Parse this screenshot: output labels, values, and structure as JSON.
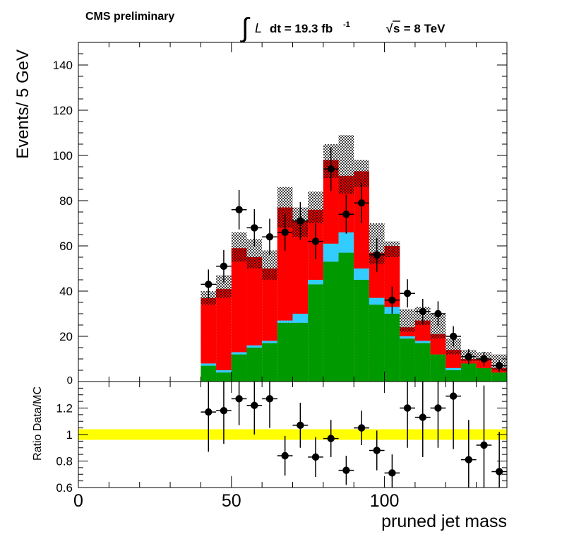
{
  "header": {
    "experiment": "CMS preliminary",
    "integral_symbol": "∫",
    "lumi_L": "L",
    "lumi_text": "dt = 19.3 fb",
    "lumi_exp": "-1",
    "sqrt_symbol": "√",
    "energy_s": "s",
    "energy_text": " = 8 TeV"
  },
  "colors": {
    "hatched_total": "#555555",
    "dark_red": "#8b0000",
    "red": "#ff0000",
    "cyan": "#33ccff",
    "green": "#009900",
    "band": "#ffff00",
    "data": "#000000"
  },
  "chart_data": [
    {
      "type": "bar",
      "stacked": true,
      "ylabel": "Events/ 5 GeV",
      "xlim": [
        0,
        140
      ],
      "ylim": [
        0,
        150
      ],
      "y_ticks": [
        20,
        40,
        60,
        80,
        100,
        120,
        140
      ],
      "y_tick_labels": [
        "20",
        "40",
        "60",
        "80",
        "100",
        "120",
        "140"
      ],
      "y_zero_label": "0",
      "bin_edges": [
        40,
        45,
        50,
        55,
        60,
        65,
        70,
        75,
        80,
        85,
        90,
        95,
        100,
        105,
        110,
        115,
        120,
        125,
        130,
        135,
        140
      ],
      "series": [
        {
          "key": "green",
          "values": [
            7,
            4,
            12,
            15,
            17,
            26,
            26,
            43,
            53,
            57,
            45,
            34,
            30,
            19,
            17,
            12,
            5,
            8,
            6,
            4
          ]
        },
        {
          "key": "cyan",
          "values": [
            1,
            1,
            1,
            1,
            1,
            1,
            4,
            2,
            8,
            9,
            5,
            3,
            3,
            1,
            1,
            0,
            1,
            0,
            0,
            0
          ]
        },
        {
          "key": "red",
          "values": [
            26,
            32,
            40,
            34,
            27,
            41,
            34,
            25,
            29,
            17,
            36,
            15,
            22,
            2,
            7,
            7,
            6,
            1,
            3,
            1
          ]
        },
        {
          "key": "dark_red",
          "values": [
            3,
            4,
            6,
            5,
            5,
            9,
            7,
            6,
            8,
            8,
            7,
            5,
            5,
            2,
            2,
            2,
            2,
            1,
            1,
            1
          ]
        }
      ],
      "total_hatched": [
        40,
        47,
        66,
        63,
        58,
        86,
        77,
        84,
        105,
        109,
        98,
        70,
        62,
        32,
        33,
        30,
        19,
        14,
        13,
        12
      ],
      "data_points": {
        "x": [
          42.5,
          47.5,
          52.5,
          57.5,
          62.5,
          67.5,
          72.5,
          77.5,
          82.5,
          87.5,
          92.5,
          97.5,
          102.5,
          107.5,
          112.5,
          117.5,
          122.5,
          127.5,
          132.5,
          137.5
        ],
        "y": [
          43,
          51,
          76,
          68,
          64,
          66,
          71,
          62,
          94,
          74,
          79,
          56,
          36,
          39,
          31,
          30,
          20,
          11,
          10,
          7
        ]
      }
    },
    {
      "type": "scatter",
      "ylabel": "Ratio Data/MC",
      "xlabel": "pruned jet mass",
      "xlim": [
        0,
        140
      ],
      "ylim": [
        0.6,
        1.4
      ],
      "x_ticks": [
        0,
        50,
        100
      ],
      "x_tick_labels": [
        "0",
        "50",
        "100"
      ],
      "y_ticks": [
        0.6,
        0.8,
        1,
        1.2
      ],
      "y_tick_labels": [
        "0.6",
        "0.8",
        "1",
        "1.2"
      ],
      "band": [
        0.96,
        1.04
      ],
      "reference": 1,
      "data_points": {
        "x": [
          42.5,
          47.5,
          52.5,
          57.5,
          62.5,
          67.5,
          72.5,
          77.5,
          82.5,
          87.5,
          92.5,
          97.5,
          102.5,
          107.5,
          112.5,
          117.5,
          122.5,
          127.5,
          132.5,
          137.5
        ],
        "y": [
          1.17,
          1.18,
          1.27,
          1.22,
          1.27,
          0.84,
          1.07,
          0.83,
          0.97,
          0.73,
          1.05,
          0.88,
          0.71,
          1.2,
          1.13,
          1.2,
          1.29,
          0.81,
          0.92,
          0.72
        ],
        "err": [
          0.3,
          0.25,
          0.2,
          0.22,
          0.22,
          0.15,
          0.17,
          0.15,
          0.14,
          0.11,
          0.13,
          0.15,
          0.14,
          0.3,
          0.3,
          0.3,
          0.4,
          0.3,
          0.45,
          0.3
        ]
      }
    }
  ]
}
